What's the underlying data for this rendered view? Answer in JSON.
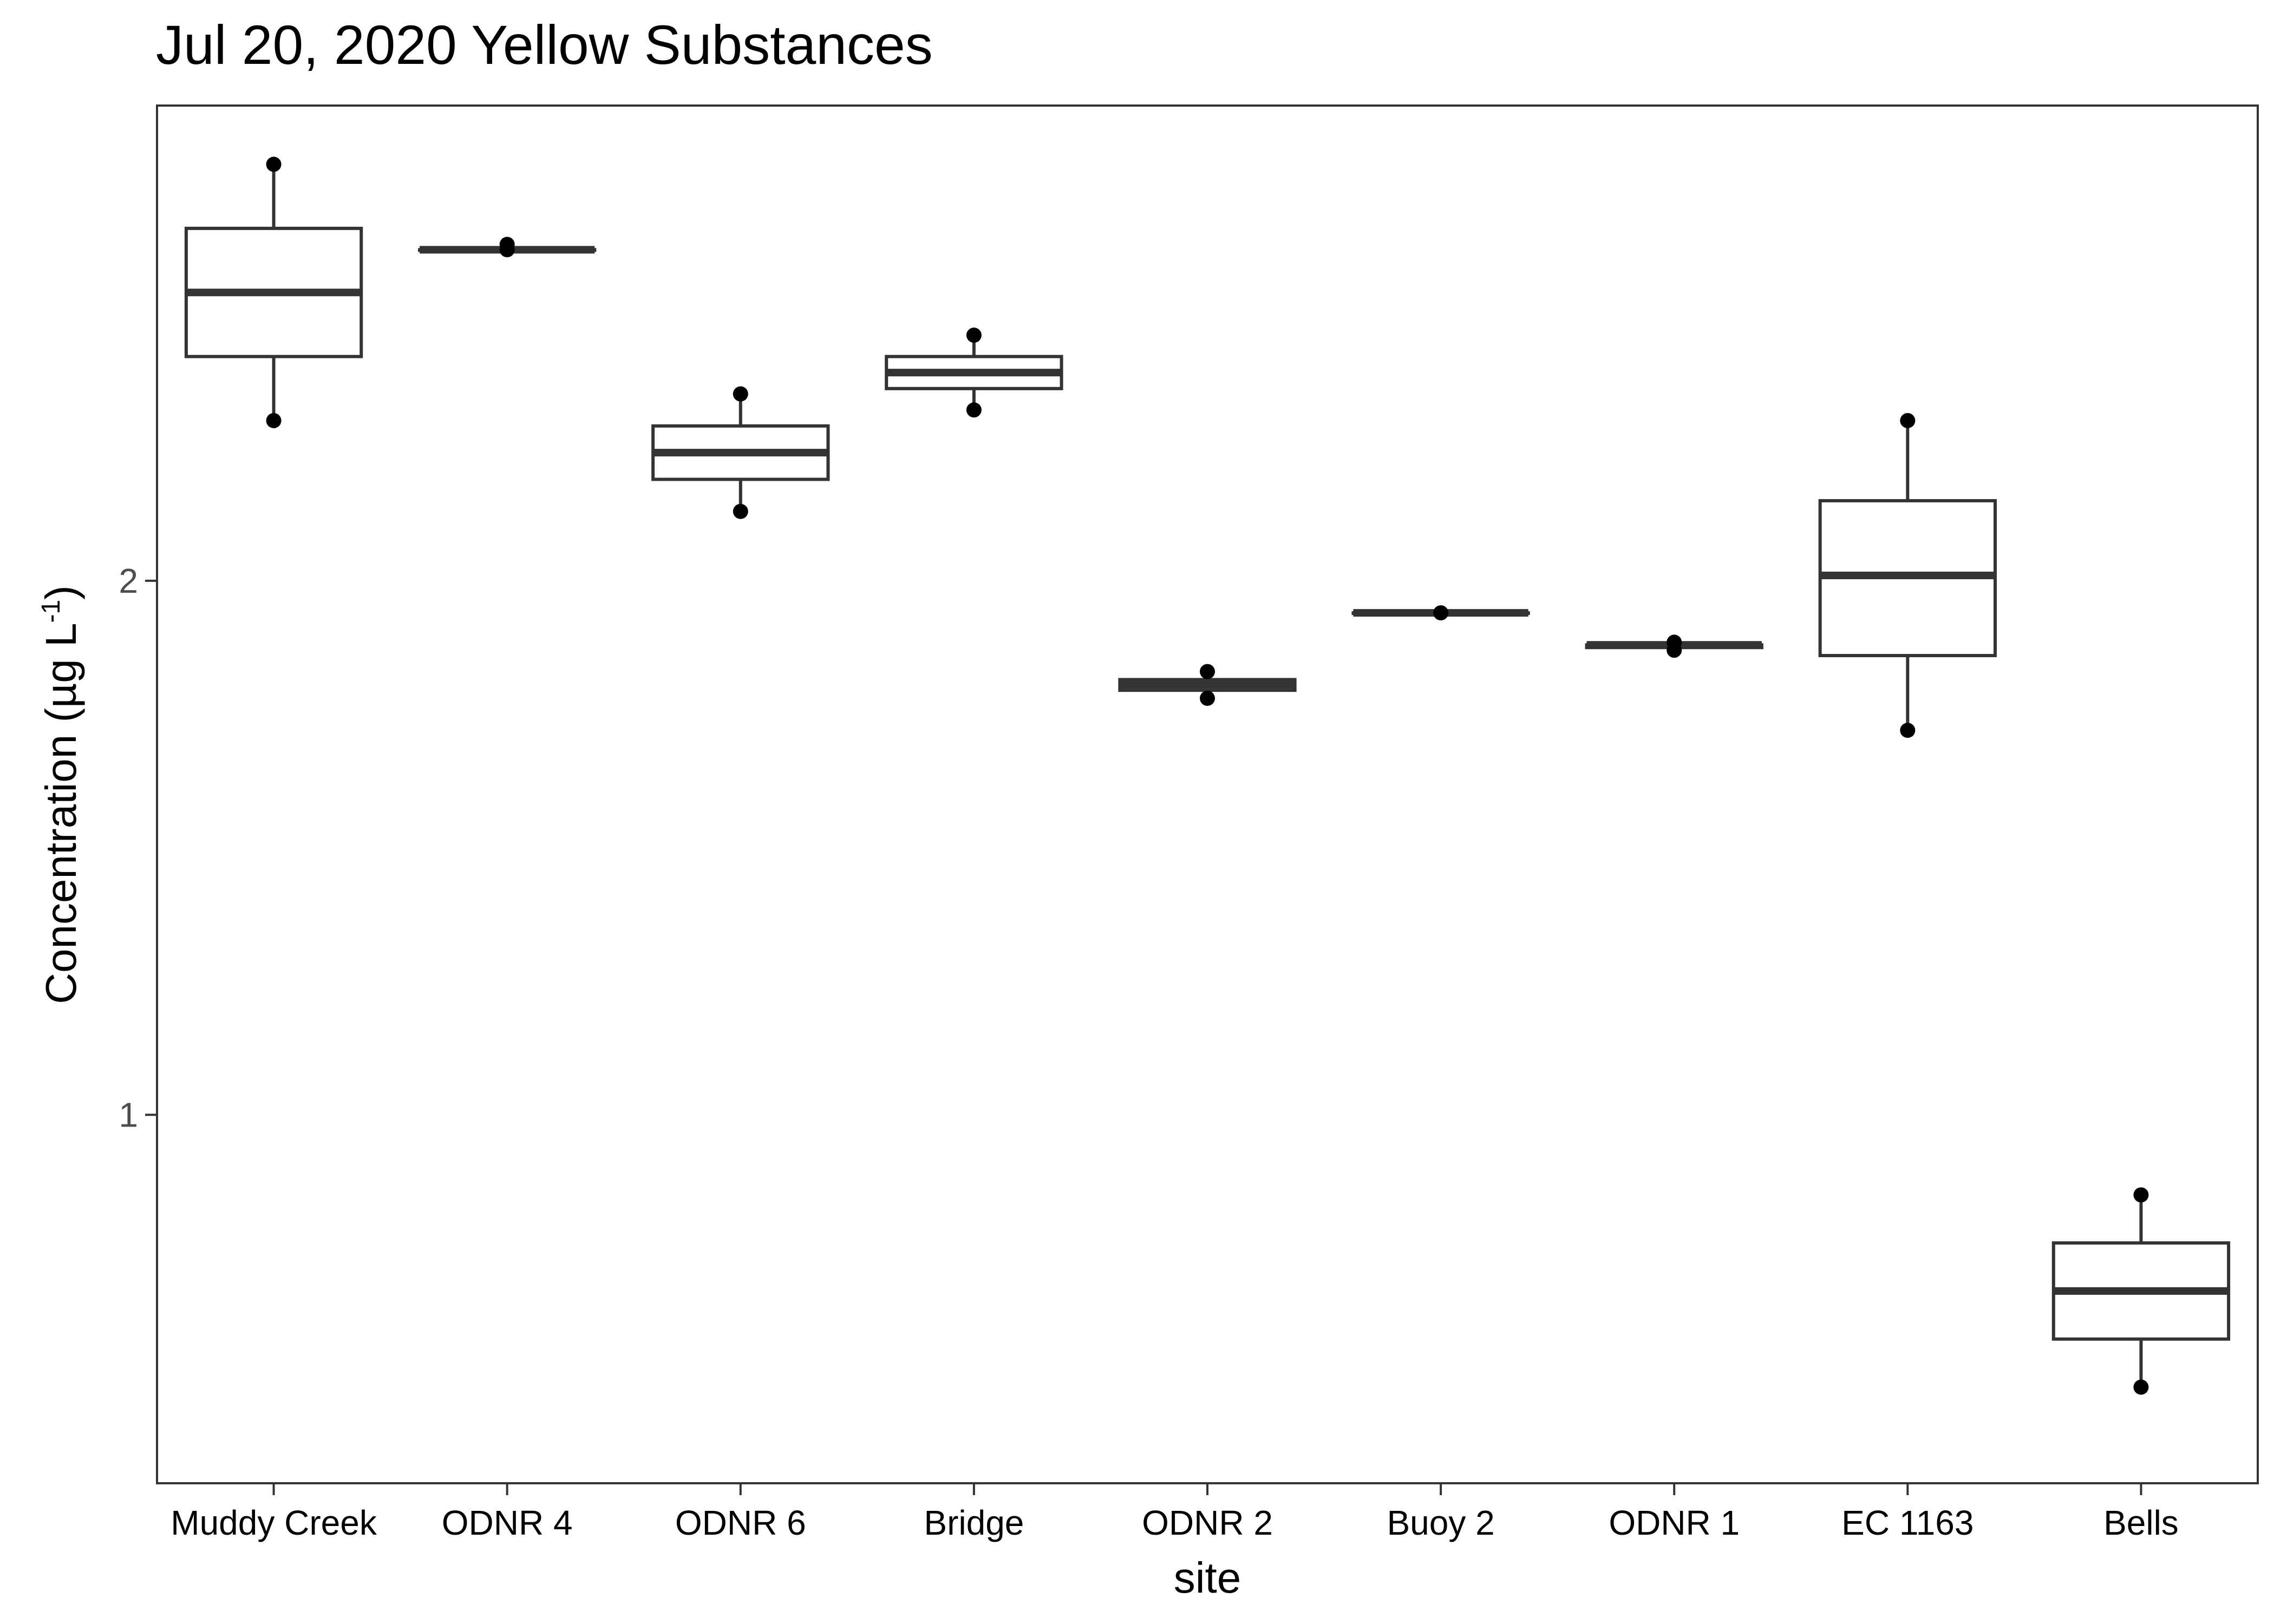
{
  "chart_data": {
    "type": "box",
    "title": "Jul 20, 2020 Yellow Substances",
    "xlabel": "site",
    "ylabel": {
      "text": "Concentration (µg L",
      "superscript": "-1",
      "suffix": ")"
    },
    "ylim": [
      0.31,
      2.89
    ],
    "yticks": [
      1,
      2
    ],
    "grid": false,
    "colors": {
      "box_stroke": "#333333",
      "points": "#000000",
      "panel_border": "#333333",
      "tick_label": "#4d4d4d"
    },
    "categories": [
      "Muddy Creek",
      "ODNR 4",
      "ODNR 6",
      "Bridge",
      "ODNR 2",
      "Buoy 2",
      "ODNR 1",
      "EC 1163",
      "Bells"
    ],
    "boxes": [
      {
        "min": 2.3,
        "q1": 2.42,
        "median": 2.54,
        "q3": 2.66,
        "max": 2.78,
        "points": [
          2.78,
          2.3
        ]
      },
      {
        "min": 2.62,
        "q1": 2.62,
        "median": 2.62,
        "q3": 2.62,
        "max": 2.63,
        "points": [
          2.63,
          2.62
        ]
      },
      {
        "min": 2.13,
        "q1": 2.19,
        "median": 2.24,
        "q3": 2.29,
        "max": 2.35,
        "points": [
          2.35,
          2.13
        ]
      },
      {
        "min": 2.32,
        "q1": 2.36,
        "median": 2.39,
        "q3": 2.42,
        "max": 2.46,
        "points": [
          2.46,
          2.32
        ]
      },
      {
        "min": 1.78,
        "q1": 1.795,
        "median": 1.805,
        "q3": 1.815,
        "max": 1.83,
        "points": [
          1.83,
          1.78
        ]
      },
      {
        "min": 1.94,
        "q1": 1.94,
        "median": 1.94,
        "q3": 1.94,
        "max": 1.94,
        "points": [
          1.94
        ]
      },
      {
        "min": 1.87,
        "q1": 1.875,
        "median": 1.88,
        "q3": 1.88,
        "max": 1.885,
        "points": [
          1.885,
          1.87
        ]
      },
      {
        "min": 1.72,
        "q1": 1.86,
        "median": 2.01,
        "q3": 2.15,
        "max": 2.3,
        "points": [
          2.3,
          1.72
        ]
      },
      {
        "min": 0.49,
        "q1": 0.58,
        "median": 0.67,
        "q3": 0.76,
        "max": 0.85,
        "points": [
          0.85,
          0.49
        ]
      }
    ]
  }
}
